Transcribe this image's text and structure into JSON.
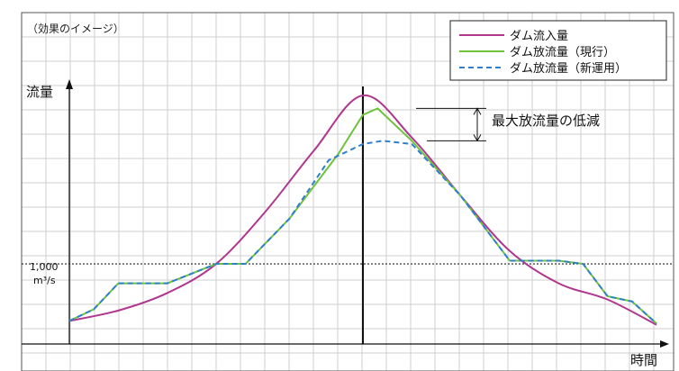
{
  "chart_data": {
    "type": "line",
    "caption": "（効果のイメージ）",
    "ylabel": "流量",
    "xlabel": "時間",
    "threshold": {
      "value": 1000,
      "label_value": "1,000",
      "label_unit": "m³/s"
    },
    "annotation": "最大放流量の低減",
    "grid": true,
    "legend_position": "top-right",
    "series": [
      {
        "name": "ダム流入量",
        "color": "#b0368f",
        "style": "solid",
        "x": [
          0,
          1,
          2,
          3,
          4,
          5,
          6,
          7,
          8,
          9,
          10,
          11,
          12
        ],
        "values": [
          120,
          280,
          550,
          1000,
          1800,
          2750,
          3600,
          2950,
          2050,
          1200,
          700,
          450,
          60
        ]
      },
      {
        "name": "ダム放流量（現行）",
        "color": "#6fc33a",
        "style": "solid",
        "x": [
          0,
          0.5,
          1,
          2,
          3,
          3.6,
          4.5,
          5.5,
          6,
          6.3,
          7,
          8,
          9,
          10,
          10.5,
          11,
          11.5,
          12
        ],
        "values": [
          120,
          300,
          700,
          700,
          1000,
          1000,
          1700,
          2700,
          3300,
          3400,
          2900,
          2050,
          1050,
          1050,
          1000,
          500,
          420,
          80
        ]
      },
      {
        "name": "ダム放流量（新運用）",
        "color": "#2f7fcf",
        "style": "dashed",
        "x": [
          0,
          0.5,
          1,
          2,
          3,
          3.6,
          4.5,
          5.3,
          6,
          6.4,
          7,
          8,
          9,
          10,
          10.5,
          11,
          11.5,
          12
        ],
        "values": [
          120,
          300,
          700,
          700,
          1000,
          1000,
          1700,
          2600,
          2850,
          2900,
          2850,
          2050,
          1050,
          1050,
          1000,
          500,
          420,
          80
        ]
      }
    ]
  }
}
